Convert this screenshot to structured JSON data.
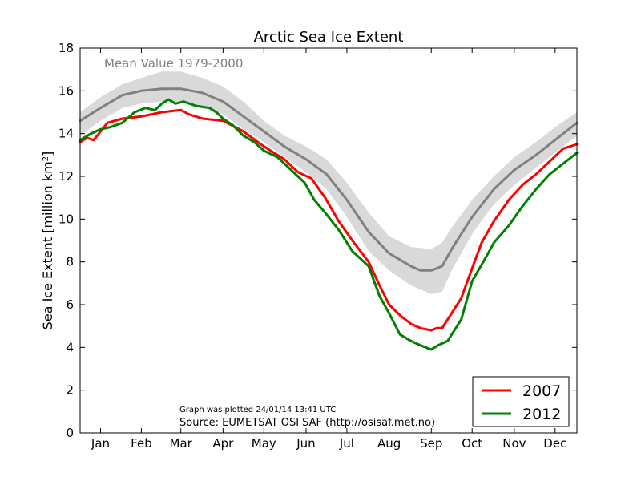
{
  "chart_data": {
    "type": "line",
    "title": "Arctic Sea Ice Extent",
    "ylabel": "Sea Ice Extent [million km",
    "ylabel_sup": "2",
    "ylabel_end": "]",
    "ylim": [
      0,
      18
    ],
    "xlim": [
      0,
      365
    ],
    "yticks": [
      0,
      2,
      4,
      6,
      8,
      10,
      12,
      14,
      16,
      18
    ],
    "xtick_labels": [
      "Jan",
      "Feb",
      "Mar",
      "Apr",
      "May",
      "Jun",
      "Jul",
      "Aug",
      "Sep",
      "Oct",
      "Nov",
      "Dec"
    ],
    "xtick_days": [
      15,
      45,
      74,
      105,
      135,
      166,
      196,
      227,
      258,
      288,
      319,
      349
    ],
    "grid": false,
    "legend_placement": "bottom-right",
    "annotations": {
      "mean_label": "Mean Value 1979-2000",
      "plotted_note": "Graph was plotted 24/01/14 13:41 UTC",
      "source_note": "Source: EUMETSAT OSI SAF (http://osisaf.met.no)"
    },
    "mean_band": {
      "x": [
        0,
        15,
        31,
        45,
        60,
        74,
        90,
        105,
        120,
        135,
        150,
        166,
        181,
        196,
        212,
        227,
        243,
        258,
        266,
        273,
        288,
        304,
        319,
        335,
        349,
        365
      ],
      "lower": [
        13.9,
        14.6,
        15.2,
        15.4,
        15.5,
        15.5,
        15.3,
        14.9,
        14.2,
        13.6,
        12.9,
        12.2,
        11.4,
        10.1,
        8.5,
        7.6,
        6.9,
        6.5,
        6.6,
        7.6,
        9.3,
        10.7,
        11.6,
        12.4,
        13.1,
        13.9
      ],
      "upper": [
        15.0,
        15.7,
        16.3,
        16.6,
        16.9,
        16.9,
        16.6,
        16.2,
        15.5,
        14.6,
        13.9,
        13.4,
        12.8,
        11.7,
        10.3,
        9.2,
        8.7,
        8.6,
        8.9,
        9.6,
        10.9,
        12.0,
        12.9,
        13.6,
        14.3,
        15.0
      ]
    },
    "series": [
      {
        "name": "Mean Value 1979-2000",
        "color": "#808080",
        "x": [
          0,
          15,
          31,
          45,
          60,
          74,
          90,
          105,
          120,
          135,
          150,
          166,
          181,
          196,
          212,
          227,
          243,
          250,
          258,
          266,
          273,
          288,
          304,
          319,
          335,
          349,
          365
        ],
        "values": [
          14.6,
          15.2,
          15.8,
          16.0,
          16.1,
          16.1,
          15.9,
          15.5,
          14.8,
          14.1,
          13.4,
          12.8,
          12.1,
          10.9,
          9.4,
          8.4,
          7.8,
          7.6,
          7.6,
          7.8,
          8.6,
          10.1,
          11.4,
          12.3,
          13.0,
          13.7,
          14.5
        ]
      },
      {
        "name": "2007",
        "color": "#ff0000",
        "x": [
          0,
          5,
          10,
          15,
          20,
          31,
          45,
          60,
          74,
          80,
          90,
          105,
          120,
          135,
          150,
          160,
          170,
          180,
          190,
          200,
          212,
          220,
          227,
          235,
          243,
          250,
          258,
          262,
          266,
          270,
          280,
          288,
          295,
          304,
          315,
          325,
          335,
          345,
          355,
          365
        ],
        "values": [
          13.6,
          13.8,
          13.7,
          14.1,
          14.5,
          14.7,
          14.8,
          15.0,
          15.1,
          14.9,
          14.7,
          14.6,
          14.1,
          13.4,
          12.8,
          12.2,
          11.9,
          11.0,
          9.9,
          9.0,
          8.0,
          6.9,
          6.0,
          5.5,
          5.1,
          4.9,
          4.8,
          4.9,
          4.9,
          5.3,
          6.3,
          7.7,
          8.9,
          9.9,
          10.9,
          11.6,
          12.1,
          12.7,
          13.3,
          13.5
        ]
      },
      {
        "name": "2012",
        "color": "#008000",
        "x": [
          0,
          8,
          15,
          22,
          31,
          40,
          48,
          55,
          60,
          65,
          70,
          76,
          85,
          95,
          100,
          105,
          112,
          120,
          128,
          135,
          145,
          155,
          165,
          172,
          180,
          190,
          200,
          212,
          220,
          227,
          235,
          243,
          250,
          258,
          263,
          270,
          275,
          280,
          288,
          298,
          304,
          315,
          325,
          335,
          345,
          355,
          365
        ],
        "values": [
          13.7,
          14.0,
          14.2,
          14.3,
          14.5,
          15.0,
          15.2,
          15.1,
          15.4,
          15.6,
          15.4,
          15.5,
          15.3,
          15.2,
          15.0,
          14.7,
          14.4,
          13.9,
          13.6,
          13.2,
          12.9,
          12.3,
          11.7,
          10.9,
          10.3,
          9.5,
          8.5,
          7.8,
          6.4,
          5.6,
          4.6,
          4.3,
          4.1,
          3.9,
          4.1,
          4.3,
          4.8,
          5.3,
          7.1,
          8.2,
          8.9,
          9.7,
          10.6,
          11.4,
          12.1,
          12.6,
          13.1
        ]
      }
    ]
  }
}
